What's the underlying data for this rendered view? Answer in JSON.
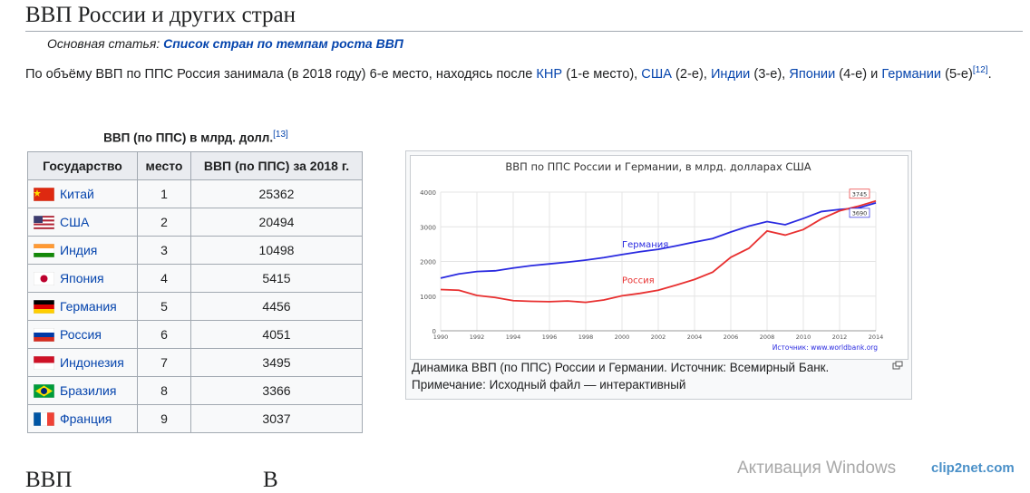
{
  "heading": "ВВП России и других стран",
  "hatnote": {
    "prefix": "Основная статья: ",
    "link": "Список стран по темпам роста ВВП"
  },
  "paragraph": {
    "parts": [
      {
        "text": "По объёму ВВП по ППС Россия занимала (в 2018 году) 6-е место, находясь после ",
        "link": false
      },
      {
        "text": "КНР",
        "link": true
      },
      {
        "text": " (1-е место), ",
        "link": false
      },
      {
        "text": "США",
        "link": true
      },
      {
        "text": " (2-е), ",
        "link": false
      },
      {
        "text": "Индии",
        "link": true
      },
      {
        "text": " (3-е), ",
        "link": false
      },
      {
        "text": "Японии",
        "link": true
      },
      {
        "text": " (4-е) и ",
        "link": false
      },
      {
        "text": "Германии",
        "link": true
      },
      {
        "text": " (5-е)",
        "link": false
      }
    ],
    "ref": "[12]",
    "end": "."
  },
  "table": {
    "caption": "ВВП (по ППС) в млрд. долл.",
    "caption_ref": "[13]",
    "columns": [
      "Государство",
      "место",
      "ВВП (по ППС) за 2018 г."
    ],
    "rows": [
      [
        "Китай",
        1,
        25362
      ],
      [
        "США",
        2,
        20494
      ],
      [
        "Индия",
        3,
        10498
      ],
      [
        "Япония",
        4,
        5415
      ],
      [
        "Германия",
        5,
        4456
      ],
      [
        "Россия",
        6,
        4051
      ],
      [
        "Индонезия",
        7,
        3495
      ],
      [
        "Бразилия",
        8,
        3366
      ],
      [
        "Франция",
        9,
        3037
      ]
    ]
  },
  "figure": {
    "chart_data": {
      "type": "line",
      "title": "ВВП по ППС России и Германии, в млрд. долларах США",
      "source": "Источник: www.worldbank.org",
      "x": [
        1990,
        1991,
        1992,
        1993,
        1994,
        1995,
        1996,
        1997,
        1998,
        1999,
        2000,
        2001,
        2002,
        2003,
        2004,
        2005,
        2006,
        2007,
        2008,
        2009,
        2010,
        2011,
        2012,
        2013,
        2014
      ],
      "series": [
        {
          "name": "Германия",
          "color": "#2a2ae0",
          "values": [
            1520,
            1640,
            1710,
            1730,
            1810,
            1880,
            1930,
            1980,
            2040,
            2110,
            2200,
            2280,
            2350,
            2450,
            2560,
            2660,
            2850,
            3020,
            3150,
            3060,
            3240,
            3440,
            3500,
            3540,
            3690
          ]
        },
        {
          "name": "Россия",
          "color": "#e83030",
          "values": [
            1190,
            1170,
            1020,
            960,
            870,
            850,
            840,
            860,
            820,
            890,
            1010,
            1080,
            1170,
            1320,
            1480,
            1690,
            2120,
            2380,
            2880,
            2760,
            2920,
            3230,
            3460,
            3590,
            3745
          ]
        }
      ],
      "end_labels": true,
      "xlim": [
        1990,
        2014
      ],
      "ylim": [
        0,
        4000
      ],
      "xticks": [
        1990,
        1992,
        1994,
        1996,
        1998,
        2000,
        2002,
        2004,
        2006,
        2008,
        2010,
        2012,
        2014
      ],
      "yticks": [
        0,
        1000,
        2000,
        3000,
        4000
      ],
      "grid": true
    },
    "caption": [
      "Динамика ВВП (по ППС) России и Германии. Источник: Всемирный Банк.",
      "Примечание: Исходный файл — интерактивный"
    ]
  },
  "next_heading": [
    "ВВП",
    "В"
  ],
  "overlay": {
    "activation": "Активация Windows",
    "watermark": "clip2net.com"
  }
}
